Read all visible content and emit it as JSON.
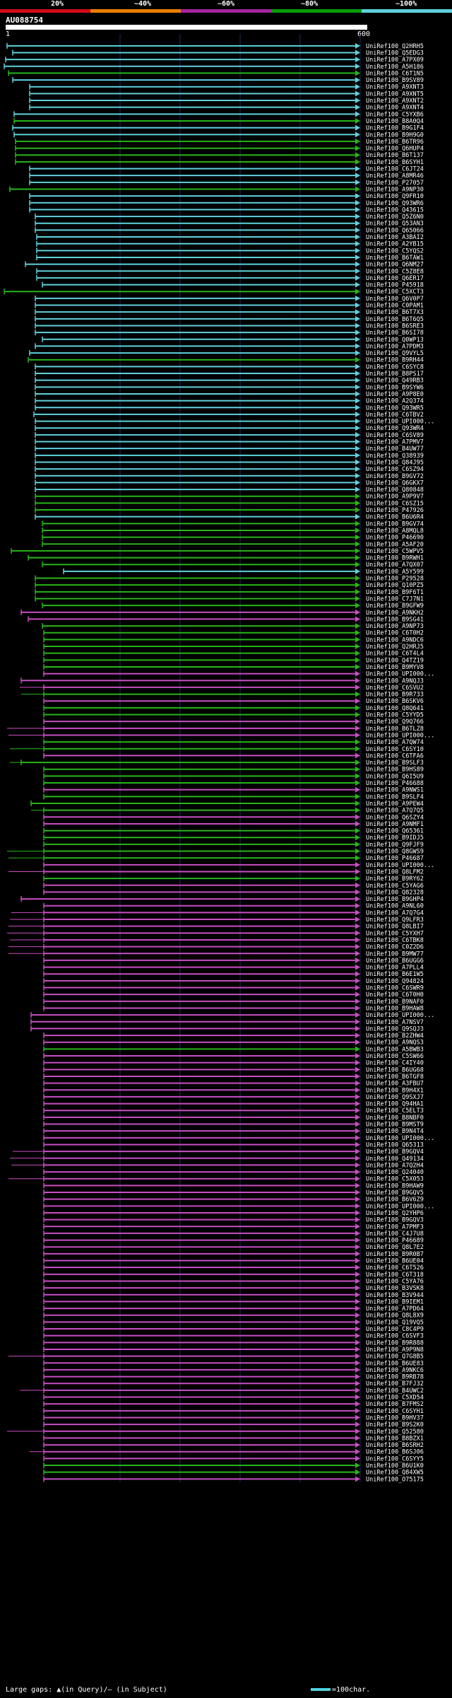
{
  "identity_legend": {
    "labels": [
      "20%",
      "~40%",
      "~60%",
      "~80%",
      "~100%"
    ],
    "colors": [
      "#d2091a",
      "#e87f05",
      "#a3259e",
      "#099c08",
      "#5fd1db"
    ]
  },
  "query": {
    "name": "AU088754",
    "start": "1",
    "end": "600"
  },
  "footer": {
    "gaps_text": "Large gaps: ▲(in Query)/— (in Subject)",
    "scale_text": "=100char."
  },
  "hit_colors": {
    "C": "#5fd1db",
    "G": "#28b51a",
    "P": "#c84ec2"
  },
  "hits": [
    [
      "UniRef100_Q2HRH5",
      "C"
    ],
    [
      "UniRef100_Q5EDG3",
      "C"
    ],
    [
      "UniRef100_A7PX09",
      "C"
    ],
    [
      "UniRef100_A5H186",
      "C"
    ],
    [
      "UniRef100_C6T1N5",
      "G"
    ],
    [
      "UniRef100_B9SV89",
      "C"
    ],
    [
      "UniRef100_A9XNT3",
      "C"
    ],
    [
      "UniRef100_A9XNT5",
      "C"
    ],
    [
      "UniRef100_A9XNT2",
      "C"
    ],
    [
      "UniRef100_A9XNT4",
      "C"
    ],
    [
      "UniRef100_C5YXB6",
      "C"
    ],
    [
      "UniRef100_B8A0Q4",
      "G"
    ],
    [
      "UniRef100_B9G1F4",
      "C"
    ],
    [
      "UniRef100_B9H9G0",
      "C"
    ],
    [
      "UniRef100_B6TR96",
      "G"
    ],
    [
      "UniRef100_Q6HUP4",
      "G"
    ],
    [
      "UniRef100_B6T137",
      "G"
    ],
    [
      "UniRef100_B6SYH1",
      "G"
    ],
    [
      "UniRef100_C6JT24",
      "C"
    ],
    [
      "UniRef100_A8MR46",
      "C"
    ],
    [
      "UniRef100_P27057",
      "C"
    ],
    [
      "UniRef100_A9NP30",
      "G"
    ],
    [
      "UniRef100_Q9FR10",
      "C"
    ],
    [
      "UniRef100_Q93WR6",
      "C"
    ],
    [
      "UniRef100_Q43615",
      "C"
    ],
    [
      "UniRef100_Q5Z6N0",
      "C"
    ],
    [
      "UniRef100_Q53AN3",
      "C"
    ],
    [
      "UniRef100_Q65066",
      "C"
    ],
    [
      "UniRef100_A3BAI2",
      "C"
    ],
    [
      "UniRef100_A2YB15",
      "C"
    ],
    [
      "UniRef100_C5YQS2",
      "C"
    ],
    [
      "UniRef100_B6TAW1",
      "C"
    ],
    [
      "UniRef100_Q6NM27",
      "C"
    ],
    [
      "UniRef100_C5Z8E8",
      "C"
    ],
    [
      "UniRef100_Q6ER17",
      "C"
    ],
    [
      "UniRef100_P45918",
      "C"
    ],
    [
      "UniRef100_C5XCT3",
      "G"
    ],
    [
      "UniRef100_Q6V0P7",
      "C"
    ],
    [
      "UniRef100_C0PAM1",
      "C"
    ],
    [
      "UniRef100_B6T7X3",
      "C"
    ],
    [
      "UniRef100_B6T6Q5",
      "C"
    ],
    [
      "UniRef100_B6SRE3",
      "C"
    ],
    [
      "UniRef100_B6SI78",
      "C"
    ],
    [
      "UniRef100_Q0WP13",
      "C"
    ],
    [
      "UniRef100_A7PDM3",
      "C"
    ],
    [
      "UniRef100_Q9VYL5",
      "C"
    ],
    [
      "UniRef100_B9RH44",
      "G"
    ],
    [
      "UniRef100_C6SYC8",
      "C"
    ],
    [
      "UniRef100_B8PS17",
      "C"
    ],
    [
      "UniRef100_Q49RB3",
      "C"
    ],
    [
      "UniRef100_B9SYW6",
      "C"
    ],
    [
      "UniRef100_A9P8E0",
      "C"
    ],
    [
      "UniRef100_A2Q374",
      "C"
    ],
    [
      "UniRef100_Q93WR5",
      "C"
    ],
    [
      "UniRef100_C6TBV2",
      "C"
    ],
    [
      "UniRef100_UPI000...",
      "C"
    ],
    [
      "UniRef100_Q93WR4",
      "C"
    ],
    [
      "UniRef100_C6SV89",
      "C"
    ],
    [
      "UniRef100_A7PMV7",
      "C"
    ],
    [
      "UniRef100_B4UW77",
      "C"
    ],
    [
      "UniRef100_Q38939",
      "C"
    ],
    [
      "UniRef100_Q84J95",
      "C"
    ],
    [
      "UniRef100_C6SZ94",
      "C"
    ],
    [
      "UniRef100_B9GV72",
      "C"
    ],
    [
      "UniRef100_Q6GKX7",
      "C"
    ],
    [
      "UniRef100_Q80848",
      "C"
    ],
    [
      "UniRef100_A9P9V7",
      "G"
    ],
    [
      "UniRef100_C6SZ15",
      "G"
    ],
    [
      "UniRef100_P47926",
      "G"
    ],
    [
      "UniRef100_B6U6R4",
      "C"
    ],
    [
      "UniRef100_B9GV74",
      "G"
    ],
    [
      "UniRef100_A8MQL8",
      "G"
    ],
    [
      "UniRef100_P46690",
      "G"
    ],
    [
      "UniRef100_A5AF20",
      "G"
    ],
    [
      "UniRef100_C5WPV5",
      "G"
    ],
    [
      "UniRef100_B9RWH1",
      "G"
    ],
    [
      "UniRef100_A7QX07",
      "G"
    ],
    [
      "UniRef100_A5Y599",
      "C"
    ],
    [
      "UniRef100_P29528",
      "G"
    ],
    [
      "UniRef100_Q10PZ5",
      "G"
    ],
    [
      "UniRef100_B9F6T1",
      "G"
    ],
    [
      "UniRef100_C7J7N1",
      "G"
    ],
    [
      "UniRef100_B9GFW9",
      "G"
    ],
    [
      "UniRef100_A9NKH2",
      "P"
    ],
    [
      "UniRef100_B9SG41",
      "P"
    ],
    [
      "UniRef100_A9NP73",
      "G"
    ],
    [
      "UniRef100_C6T0H2",
      "G"
    ],
    [
      "UniRef100_A9NDC6",
      "G"
    ],
    [
      "UniRef100_Q2HRJ5",
      "G"
    ],
    [
      "UniRef100_C6T4L4",
      "G"
    ],
    [
      "UniRef100_Q4TZ19",
      "G"
    ],
    [
      "UniRef100_B9MYV8",
      "G"
    ],
    [
      "UniRef100_UPI000...",
      "P"
    ],
    [
      "UniRef100_A9NQJ3",
      "P"
    ],
    [
      "UniRef100_C6SVU2",
      "P"
    ],
    [
      "UniRef100_B9R733",
      "G"
    ],
    [
      "UniRef100_B6SKV6",
      "P"
    ],
    [
      "UniRef100_Q8Q641",
      "G"
    ],
    [
      "UniRef100_C5YYD5",
      "G"
    ],
    [
      "UniRef100_Q9Q766",
      "P"
    ],
    [
      "UniRef100_B6TLZ8",
      "P"
    ],
    [
      "UniRef100_UPI000...",
      "P"
    ],
    [
      "UniRef100_A7QW74",
      "G"
    ],
    [
      "UniRef100_C6SY10",
      "G"
    ],
    [
      "UniRef100_C6TFA6",
      "P"
    ],
    [
      "UniRef100_B9SLF3",
      "G"
    ],
    [
      "UniRef100_B9HS89",
      "G"
    ],
    [
      "UniRef100_Q6I5U9",
      "G"
    ],
    [
      "UniRef100_P46688",
      "G"
    ],
    [
      "UniRef100_A9NWS1",
      "P"
    ],
    [
      "UniRef100_B9SLF4",
      "G"
    ],
    [
      "UniRef100_A9PEW4",
      "G"
    ],
    [
      "UniRef100_A7Q7Q5",
      "G"
    ],
    [
      "UniRef100_Q6SZY4",
      "P"
    ],
    [
      "UniRef100_A9NMF1",
      "P"
    ],
    [
      "UniRef100_Q65361",
      "G"
    ],
    [
      "UniRef100_B9IDJ5",
      "G"
    ],
    [
      "UniRef100_Q9FJF9",
      "G"
    ],
    [
      "UniRef100_Q8GWS9",
      "G"
    ],
    [
      "UniRef100_P46687",
      "G"
    ],
    [
      "UniRef100_UPI000...",
      "P"
    ],
    [
      "UniRef100_Q8LFM2",
      "P"
    ],
    [
      "UniRef100_B9RY62",
      "G"
    ],
    [
      "UniRef100_C5YAG6",
      "P"
    ],
    [
      "UniRef100_Q82328",
      "P"
    ],
    [
      "UniRef100_B9GHP4",
      "P"
    ],
    [
      "UniRef100_A9NL60",
      "P"
    ],
    [
      "UniRef100_A7Q7G4",
      "P"
    ],
    [
      "UniRef100_Q9LFR3",
      "P"
    ],
    [
      "UniRef100_Q8LBI7",
      "P"
    ],
    [
      "UniRef100_C5YXH7",
      "P"
    ],
    [
      "UniRef100_C6TBK8",
      "P"
    ],
    [
      "UniRef100_C0Z2D6",
      "P"
    ],
    [
      "UniRef100_B9MW77",
      "P"
    ],
    [
      "UniRef100_B6UGG6",
      "P"
    ],
    [
      "UniRef100_A7PLL4",
      "P"
    ],
    [
      "UniRef100_B6E1W5",
      "P"
    ],
    [
      "UniRef100_Q94824",
      "P"
    ],
    [
      "UniRef100_C6SWR9",
      "P"
    ],
    [
      "UniRef100_C6T0H0",
      "P"
    ],
    [
      "UniRef100_B9NAF0",
      "P"
    ],
    [
      "UniRef100_B9HAW8",
      "P"
    ],
    [
      "UniRef100_UPI000...",
      "P"
    ],
    [
      "UniRef100_A7NSV7",
      "P"
    ],
    [
      "UniRef100_Q9SQJ3",
      "P"
    ],
    [
      "UniRef100_B2ZHW4",
      "P"
    ],
    [
      "UniRef100_A9NQS3",
      "P"
    ],
    [
      "UniRef100_A5BWB3",
      "G"
    ],
    [
      "UniRef100_C5SW66",
      "P"
    ],
    [
      "UniRef100_C4IY40",
      "P"
    ],
    [
      "UniRef100_B6UG68",
      "P"
    ],
    [
      "UniRef100_B6TGF8",
      "P"
    ],
    [
      "UniRef100_A3FBU7",
      "P"
    ],
    [
      "UniRef100_B9H4X1",
      "P"
    ],
    [
      "UniRef100_Q9SXJ7",
      "P"
    ],
    [
      "UniRef100_Q94HA1",
      "P"
    ],
    [
      "UniRef100_C5ELT3",
      "P"
    ],
    [
      "UniRef100_B8NBF0",
      "P"
    ],
    [
      "UniRef100_B9MST9",
      "P"
    ],
    [
      "UniRef100_B9N4T4",
      "P"
    ],
    [
      "UniRef100_UPI000...",
      "P"
    ],
    [
      "UniRef100_Q65313",
      "P"
    ],
    [
      "UniRef100_B9GQV4",
      "P"
    ],
    [
      "UniRef100_Q49134",
      "P"
    ],
    [
      "UniRef100_A7Q2H4",
      "P"
    ],
    [
      "UniRef100_Q24040",
      "P"
    ],
    [
      "UniRef100_C5X053",
      "P"
    ],
    [
      "UniRef100_B9HAW9",
      "P"
    ],
    [
      "UniRef100_B9GQV5",
      "P"
    ],
    [
      "UniRef100_B6V6Z9",
      "P"
    ],
    [
      "UniRef100_UPI000...",
      "P"
    ],
    [
      "UniRef100_Q2YHP6",
      "P"
    ],
    [
      "UniRef100_B9GQV3",
      "P"
    ],
    [
      "UniRef100_A7PMF3",
      "P"
    ],
    [
      "UniRef100_C4J7U8",
      "P"
    ],
    [
      "UniRef100_P46689",
      "P"
    ],
    [
      "UniRef100_Q8L7E2",
      "P"
    ],
    [
      "UniRef100_B9R0B7",
      "P"
    ],
    [
      "UniRef100_B6UE04",
      "P"
    ],
    [
      "UniRef100_C6T526",
      "P"
    ],
    [
      "UniRef100_C6T318",
      "P"
    ],
    [
      "UniRef100_C5YA76",
      "P"
    ],
    [
      "UniRef100_B3VSK8",
      "P"
    ],
    [
      "UniRef100_B3V944",
      "P"
    ],
    [
      "UniRef100_B9IEM1",
      "P"
    ],
    [
      "UniRef100_A7PD64",
      "P"
    ],
    [
      "UniRef100_Q8L8X9",
      "P"
    ],
    [
      "UniRef100_Q19VQ5",
      "P"
    ],
    [
      "UniRef100_C8C4P9",
      "P"
    ],
    [
      "UniRef100_C6SVF3",
      "P"
    ],
    [
      "UniRef100_B9R888",
      "P"
    ],
    [
      "UniRef100_A9P9N8",
      "P"
    ],
    [
      "UniRef100_Q7G8B5",
      "P"
    ],
    [
      "UniRef100_B6UE83",
      "P"
    ],
    [
      "UniRef100_A9NKC6",
      "P"
    ],
    [
      "UniRef100_B9RB78",
      "P"
    ],
    [
      "UniRef100_B7FJ32",
      "P"
    ],
    [
      "UniRef100_B4UWC2",
      "P"
    ],
    [
      "UniRef100_C5XD54",
      "P"
    ],
    [
      "UniRef100_B7FMS2",
      "P"
    ],
    [
      "UniRef100_C6SYH1",
      "P"
    ],
    [
      "UniRef100_B9HV37",
      "P"
    ],
    [
      "UniRef100_B9S2K0",
      "P"
    ],
    [
      "UniRef100_Q52580",
      "P"
    ],
    [
      "UniRef100_B8BZX1",
      "P"
    ],
    [
      "UniRef100_B6SRH2",
      "P"
    ],
    [
      "UniRef100_B6SJ06",
      "P"
    ],
    [
      "UniRef100_C6SYY5",
      "P"
    ],
    [
      "UniRef100_B6U1K0",
      "G"
    ],
    [
      "UniRef100_Q84XW5",
      "G"
    ],
    [
      "UniRef100_O75175",
      "P"
    ]
  ]
}
